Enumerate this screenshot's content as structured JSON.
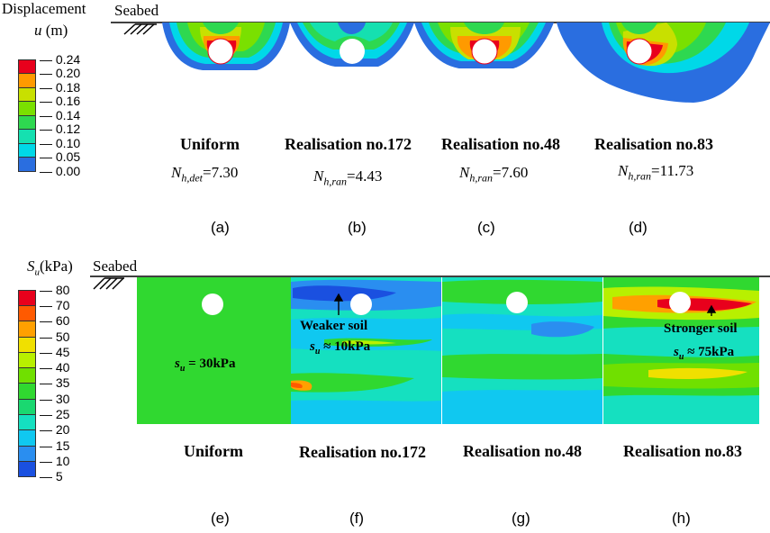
{
  "top": {
    "legend_title": "Displacement",
    "legend_var": "u",
    "legend_unit": " (m)",
    "legend_ticks": [
      "0.24",
      "0.20",
      "0.18",
      "0.16",
      "0.14",
      "0.12",
      "0.10",
      "0.05",
      "0.00"
    ],
    "legend_colors": [
      "#e8001c",
      "#ff9a00",
      "#c8e000",
      "#7ae000",
      "#2ed850",
      "#15e0b0",
      "#00d8e8",
      "#2a6ee0",
      "#ffffff"
    ],
    "seabed": "Seabed",
    "panels": [
      {
        "title": "Uniform",
        "sub_n": "N",
        "sub_idx": "h,det",
        "sub_val": "=7.30",
        "label": "(a)"
      },
      {
        "title": "Realisation no.172",
        "sub_n": "N",
        "sub_idx": "h,ran",
        "sub_val": "=4.43",
        "label": "(b)"
      },
      {
        "title": "Realisation no.48",
        "sub_n": "N",
        "sub_idx": "h,ran",
        "sub_val": "=7.60",
        "label": "(c)"
      },
      {
        "title": "Realisation no.83",
        "sub_n": "N",
        "sub_idx": "h,ran",
        "sub_val": "=11.73",
        "label": "(d)"
      }
    ]
  },
  "bottom": {
    "legend_var": "S",
    "legend_sub": "u",
    "legend_unit": "(kPa)",
    "legend_ticks": [
      "80",
      "70",
      "60",
      "50",
      "45",
      "40",
      "35",
      "30",
      "25",
      "20",
      "15",
      "10",
      "5"
    ],
    "legend_colors": [
      "#e8001c",
      "#ff5a00",
      "#ffa000",
      "#f0e000",
      "#b8f000",
      "#70e000",
      "#30d830",
      "#1ad870",
      "#15e0c0",
      "#10c8f0",
      "#2a8ef0",
      "#1a50e0",
      "#1010d8"
    ],
    "seabed": "Seabed",
    "uniform_annot": "= 30kPa",
    "weak_annot": "Weaker soil",
    "weak_val": "≈ 10kPa",
    "strong_annot": "Stronger soil",
    "strong_val": "≈ 75kPa",
    "s_sym": "s",
    "s_sub": "u",
    "panels": [
      {
        "title": "Uniform",
        "label": "(e)"
      },
      {
        "title": "Realisation no.172",
        "label": "(f)"
      },
      {
        "title": "Realisation no.48",
        "label": "(g)"
      },
      {
        "title": "Realisation no.83",
        "label": "(h)"
      }
    ]
  }
}
